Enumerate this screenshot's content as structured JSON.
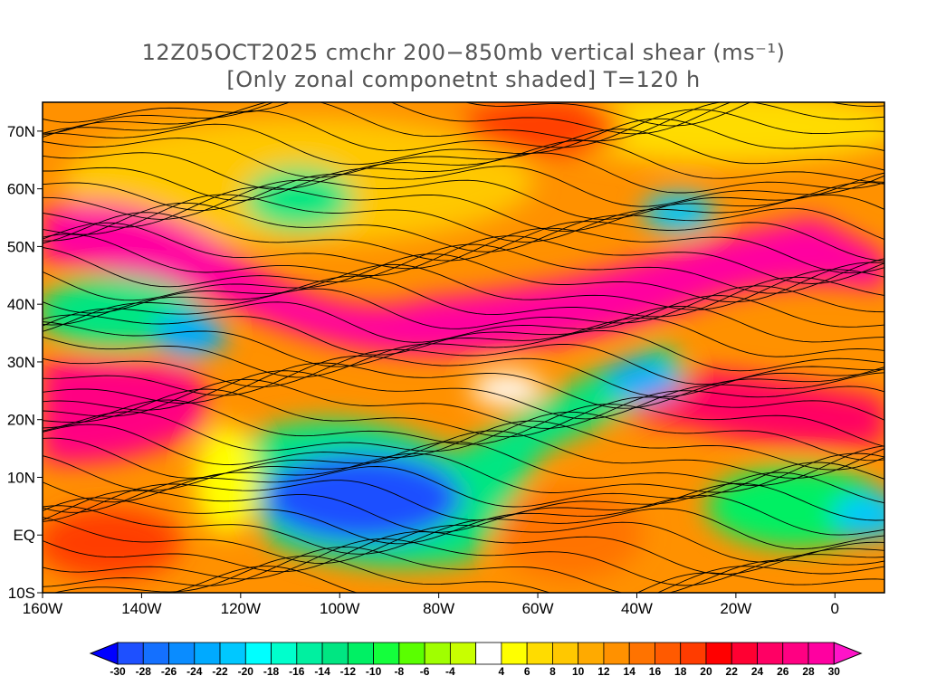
{
  "title": {
    "line1": "12Z05OCT2025 cmchr 200−850mb vertical shear (ms⁻¹)",
    "line2": "[Only zonal componetnt shaded] T=120 h"
  },
  "axes": {
    "lat_labels": [
      "70N",
      "60N",
      "50N",
      "40N",
      "30N",
      "20N",
      "10N",
      "EQ",
      "10S"
    ],
    "lat_values": [
      70,
      60,
      50,
      40,
      30,
      20,
      10,
      0,
      -10
    ],
    "lon_labels": [
      "160W",
      "140W",
      "120W",
      "100W",
      "80W",
      "60W",
      "40W",
      "20W",
      "0"
    ],
    "lon_values": [
      -160,
      -140,
      -120,
      -100,
      -80,
      -60,
      -40,
      -20,
      0
    ],
    "lon_range": [
      -160,
      10
    ],
    "lat_range": [
      -10,
      75
    ]
  },
  "colorbar": {
    "labels": [
      "-30",
      "-28",
      "-26",
      "-24",
      "-22",
      "-20",
      "-18",
      "-16",
      "-14",
      "-12",
      "-10",
      "-8",
      "-6",
      "-4",
      "4",
      "6",
      "8",
      "10",
      "12",
      "14",
      "16",
      "18",
      "20",
      "22",
      "24",
      "26",
      "28",
      "30"
    ],
    "colors": [
      "#1430ff",
      "#1e50ff",
      "#1470ff",
      "#0a8cff",
      "#00aaff",
      "#00c8ff",
      "#00ffff",
      "#00ffcc",
      "#00f0a0",
      "#00e682",
      "#00f064",
      "#14ff3c",
      "#5aff00",
      "#a0ff00",
      "#c8ff00",
      "#ffffff",
      "#ffff00",
      "#ffdc00",
      "#ffc800",
      "#ffaa00",
      "#ff9100",
      "#ff7300",
      "#ff5a00",
      "#ff3c00",
      "#ff0000",
      "#ff0032",
      "#ff0064",
      "#ff0082",
      "#ff00a0",
      "#ff14c8"
    ],
    "low_arrow_color": "#0000ff",
    "high_arrow_color": "#ff14c8"
  }
}
